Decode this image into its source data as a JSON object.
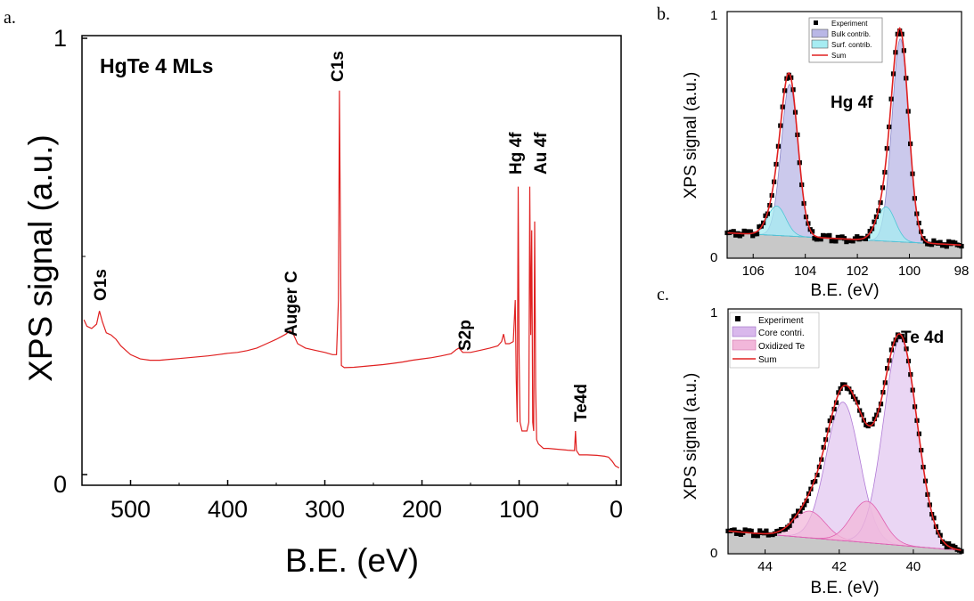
{
  "chart_data": [
    {
      "panel_label": "a.",
      "type": "line",
      "title": "HgTe 4 MLs",
      "xlabel": "B.E. (eV)",
      "ylabel": "XPS signal (a.u.)",
      "xlim": [
        550,
        -5
      ],
      "ylim": [
        0,
        1
      ],
      "x_ticks": [
        "500",
        "400",
        "300",
        "200",
        "100",
        "0"
      ],
      "y_ticks": [
        "0",
        "1"
      ],
      "series": [
        {
          "color": "#e02020",
          "points": [
            [
              548,
              0.355
            ],
            [
              545,
              0.34
            ],
            [
              540,
              0.335
            ],
            [
              535,
              0.345
            ],
            [
              532,
              0.375
            ],
            [
              529,
              0.35
            ],
            [
              525,
              0.325
            ],
            [
              520,
              0.32
            ],
            [
              515,
              0.31
            ],
            [
              510,
              0.295
            ],
            [
              505,
              0.285
            ],
            [
              500,
              0.275
            ],
            [
              490,
              0.265
            ],
            [
              480,
              0.262
            ],
            [
              470,
              0.262
            ],
            [
              460,
              0.264
            ],
            [
              450,
              0.266
            ],
            [
              440,
              0.268
            ],
            [
              430,
              0.27
            ],
            [
              420,
              0.272
            ],
            [
              410,
              0.275
            ],
            [
              400,
              0.278
            ],
            [
              390,
              0.28
            ],
            [
              380,
              0.284
            ],
            [
              370,
              0.29
            ],
            [
              360,
              0.3
            ],
            [
              350,
              0.31
            ],
            [
              345,
              0.316
            ],
            [
              340,
              0.322
            ],
            [
              336,
              0.33
            ],
            [
              332,
              0.32
            ],
            [
              328,
              0.3
            ],
            [
              320,
              0.29
            ],
            [
              310,
              0.285
            ],
            [
              300,
              0.28
            ],
            [
              292,
              0.275
            ],
            [
              288,
              0.275
            ],
            [
              286,
              0.4
            ],
            [
              285,
              0.88
            ],
            [
              284,
              0.56
            ],
            [
              283,
              0.25
            ],
            [
              280,
              0.245
            ],
            [
              270,
              0.246
            ],
            [
              260,
              0.248
            ],
            [
              250,
              0.25
            ],
            [
              240,
              0.252
            ],
            [
              230,
              0.255
            ],
            [
              220,
              0.258
            ],
            [
              210,
              0.262
            ],
            [
              200,
              0.265
            ],
            [
              190,
              0.268
            ],
            [
              180,
              0.272
            ],
            [
              170,
              0.277
            ],
            [
              165,
              0.286
            ],
            [
              162,
              0.29
            ],
            [
              158,
              0.28
            ],
            [
              150,
              0.28
            ],
            [
              140,
              0.285
            ],
            [
              130,
              0.29
            ],
            [
              122,
              0.295
            ],
            [
              118,
              0.305
            ],
            [
              116,
              0.322
            ],
            [
              114,
              0.3
            ],
            [
              110,
              0.3
            ],
            [
              106,
              0.305
            ],
            [
              104,
              0.4
            ],
            [
              103,
              0.22
            ],
            [
              102,
              0.12
            ],
            [
              101,
              0.66
            ],
            [
              100,
              0.28
            ],
            [
              99,
              0.12
            ],
            [
              97,
              0.1
            ],
            [
              95,
              0.1
            ],
            [
              92,
              0.1
            ],
            [
              90,
              0.12
            ],
            [
              89,
              0.66
            ],
            [
              88,
              0.32
            ],
            [
              87,
              0.56
            ],
            [
              86,
              0.12
            ],
            [
              85,
              0.1
            ],
            [
              84,
              0.58
            ],
            [
              83,
              0.2
            ],
            [
              82,
              0.08
            ],
            [
              80,
              0.07
            ],
            [
              75,
              0.06
            ],
            [
              70,
              0.06
            ],
            [
              60,
              0.058
            ],
            [
              50,
              0.056
            ],
            [
              43,
              0.055
            ],
            [
              42,
              0.1
            ],
            [
              41,
              0.055
            ],
            [
              38,
              0.045
            ],
            [
              30,
              0.045
            ],
            [
              20,
              0.044
            ],
            [
              12,
              0.042
            ],
            [
              8,
              0.04
            ],
            [
              4,
              0.03
            ],
            [
              1,
              0.02
            ],
            [
              -3,
              0.015
            ]
          ]
        }
      ],
      "annotations": [
        "O1s",
        "Auger C",
        "C1s",
        "S2p",
        "Hg 4f",
        "Au 4f",
        "Te4d"
      ]
    },
    {
      "panel_label": "b.",
      "type": "area",
      "xlabel": "B.E. (eV)",
      "ylabel": "XPS signal (a.u.)",
      "xlim": [
        107,
        98
      ],
      "ylim": [
        0,
        1
      ],
      "x_ticks": [
        "106",
        "104",
        "102",
        "100",
        "98"
      ],
      "y_ticks": [
        "0",
        "1"
      ],
      "annotation": "Hg 4f",
      "legend": [
        {
          "label": "Experiment",
          "color": "#000000",
          "kind": "square"
        },
        {
          "label": "Bulk contrib.",
          "color": "#b9b7e6",
          "kind": "box"
        },
        {
          "label": "Surf. contrib.",
          "color": "#a6ecf2",
          "kind": "box"
        },
        {
          "label": "Sum",
          "color": "#e02020",
          "kind": "line"
        }
      ],
      "background": {
        "y_left": 0.1,
        "y_right": 0.05
      },
      "bulk_peaks": [
        {
          "center": 104.6,
          "height": 0.62,
          "sigma": 0.32
        },
        {
          "center": 100.35,
          "height": 0.83,
          "sigma": 0.32
        }
      ],
      "surf_peaks": [
        {
          "center": 105.1,
          "height": 0.12,
          "sigma": 0.35
        },
        {
          "center": 100.9,
          "height": 0.14,
          "sigma": 0.35
        }
      ]
    },
    {
      "panel_label": "c.",
      "type": "area",
      "xlabel": "B.E. (eV)",
      "ylabel": "XPS signal (a.u.)",
      "xlim": [
        45,
        38.7
      ],
      "ylim": [
        0,
        1
      ],
      "x_ticks": [
        "44",
        "42",
        "40"
      ],
      "y_ticks": [
        "0",
        "1"
      ],
      "annotation": "Te 4d",
      "legend": [
        {
          "label": "Experiment",
          "color": "#000000",
          "kind": "square"
        },
        {
          "label": "Core contri.",
          "color": "#d9b8ec",
          "kind": "box"
        },
        {
          "label": "Oxidized Te",
          "color": "#f2b7da",
          "kind": "box"
        },
        {
          "label": "Sum",
          "color": "#e02020",
          "kind": "line"
        }
      ],
      "background": {
        "y_left": 0.09,
        "y_right": 0.01
      },
      "core_peaks": [
        {
          "center": 41.9,
          "height": 0.57,
          "sigma": 0.45
        },
        {
          "center": 40.35,
          "height": 0.85,
          "sigma": 0.45
        }
      ],
      "oxidized_peaks": [
        {
          "center": 42.8,
          "height": 0.11,
          "sigma": 0.42
        },
        {
          "center": 41.25,
          "height": 0.17,
          "sigma": 0.42
        }
      ]
    }
  ]
}
